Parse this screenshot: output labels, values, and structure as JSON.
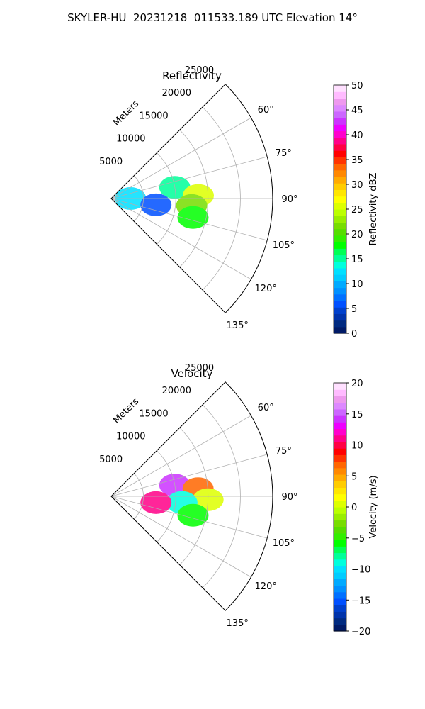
{
  "figure": {
    "title": "SKYLER-HU  20231218  011533.189 UTC Elevation 14°"
  },
  "chart_data": [
    {
      "type": "heatmap",
      "projection": "polar-sector",
      "title": "Reflectivity",
      "range_label": "Meters",
      "range_ticks": [
        "5000",
        "10000",
        "15000",
        "20000",
        "25000"
      ],
      "range_values": [
        5000,
        10000,
        15000,
        20000,
        25000
      ],
      "rmax": 25000,
      "azimuth_range": [
        45,
        135
      ],
      "azimuth_ticks": [
        "60°",
        "75°",
        "90°",
        "105°",
        "120°",
        "135°"
      ],
      "azimuth_values": [
        60,
        75,
        90,
        105,
        120,
        135
      ],
      "grid": true,
      "colorbar": {
        "label": "Reflectivity dBZ",
        "ticks": [
          "0",
          "5",
          "10",
          "15",
          "20",
          "25",
          "30",
          "35",
          "40",
          "45",
          "50"
        ],
        "range": [
          0,
          50
        ],
        "colors": [
          "#001a66",
          "#002a80",
          "#0033aa",
          "#0040cc",
          "#0050ff",
          "#0070ff",
          "#0090ff",
          "#00aaff",
          "#00ccff",
          "#00e0ff",
          "#00ffdd",
          "#00ff99",
          "#00ff55",
          "#00ff00",
          "#33ee00",
          "#55dd00",
          "#77dd00",
          "#99ee00",
          "#bbff00",
          "#ddff00",
          "#ffff00",
          "#ffe600",
          "#ffcc00",
          "#ffaa00",
          "#ff8800",
          "#ff6600",
          "#ff3300",
          "#ff0000",
          "#ff0044",
          "#ff0088",
          "#ff00cc",
          "#ee00ff",
          "#cc33ff",
          "#cc66ff",
          "#dd88ff",
          "#ee99ee",
          "#ffbbff",
          "#ffe0ff"
        ]
      },
      "echoes": [
        {
          "az": 80,
          "r": 10000,
          "value": 15
        },
        {
          "az": 88,
          "r": 13500,
          "value": 26
        },
        {
          "az": 95,
          "r": 12500,
          "value": 22
        },
        {
          "az": 103,
          "r": 13000,
          "value": 18
        },
        {
          "az": 90,
          "r": 3000,
          "value": 12
        },
        {
          "az": 98,
          "r": 7000,
          "value": 6
        }
      ]
    },
    {
      "type": "heatmap",
      "projection": "polar-sector",
      "title": "Velocity",
      "range_label": "Meters",
      "range_ticks": [
        "5000",
        "10000",
        "15000",
        "20000",
        "25000"
      ],
      "range_values": [
        5000,
        10000,
        15000,
        20000,
        25000
      ],
      "rmax": 25000,
      "azimuth_range": [
        45,
        135
      ],
      "azimuth_ticks": [
        "60°",
        "75°",
        "90°",
        "105°",
        "120°",
        "135°"
      ],
      "azimuth_values": [
        60,
        75,
        90,
        105,
        120,
        135
      ],
      "grid": true,
      "colorbar": {
        "label": "Velocity (m/s)",
        "ticks": [
          "−20",
          "−15",
          "−10",
          "−5",
          "0",
          "5",
          "10",
          "15",
          "20"
        ],
        "range": [
          -20,
          20
        ],
        "colors": [
          "#001a66",
          "#002a80",
          "#0033aa",
          "#0040cc",
          "#0050ff",
          "#0070ff",
          "#0090ff",
          "#00aaff",
          "#00ccff",
          "#00e0ff",
          "#00ffdd",
          "#00ff99",
          "#00ff55",
          "#00ff00",
          "#33ee00",
          "#55dd00",
          "#77dd00",
          "#99ee00",
          "#bbff00",
          "#ddff00",
          "#ffff00",
          "#ffe600",
          "#ffcc00",
          "#ffaa00",
          "#ff8800",
          "#ff6600",
          "#ff3300",
          "#ff0000",
          "#ff0044",
          "#ff0088",
          "#ff00cc",
          "#ee00ff",
          "#cc33ff",
          "#cc66ff",
          "#dd88ff",
          "#ee99ee",
          "#ffbbff",
          "#ffe0ff"
        ]
      },
      "echoes": [
        {
          "az": 80,
          "r": 10000,
          "value": 14
        },
        {
          "az": 85,
          "r": 13500,
          "value": 7
        },
        {
          "az": 92,
          "r": 15000,
          "value": 1
        },
        {
          "az": 95,
          "r": 11000,
          "value": -9
        },
        {
          "az": 103,
          "r": 13000,
          "value": -6
        },
        {
          "az": 98,
          "r": 7000,
          "value": 11
        }
      ]
    }
  ]
}
